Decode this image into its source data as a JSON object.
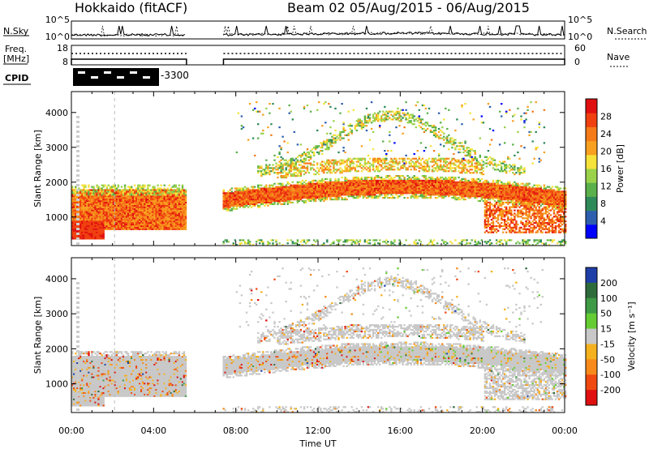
{
  "header": {
    "site": "Hokkaido (fitACF)",
    "beam": "Beam 02  05/Aug/2015 - 06/Aug/2015"
  },
  "noise_panel": {
    "left_label": "N.Sky",
    "right_label": "N.Search",
    "left_ticks": [
      "10^5",
      "10^0"
    ],
    "right_ticks": [
      "10^5",
      "10^0"
    ]
  },
  "freq_panel": {
    "left_label_lines": [
      "Freq.",
      "[MHz]"
    ],
    "right_label": "Nave",
    "left_ticks": [
      "18",
      "8"
    ],
    "right_ticks": [
      "60",
      "0"
    ]
  },
  "cpid": {
    "label": "CPID",
    "value": "-3300"
  },
  "chart_data": [
    {
      "type": "heatmap",
      "name": "power",
      "ylabel": "Slant Range [km]",
      "y_ticks": [
        1000,
        2000,
        3000,
        4000
      ],
      "ylim": [
        180,
        4600
      ],
      "colorbar": {
        "label": "Power [dB]",
        "tick_labels": [
          "4",
          "8",
          "12",
          "16",
          "20",
          "24",
          "28"
        ],
        "colors": [
          "#0000ff",
          "#2e5fae",
          "#2f8a5a",
          "#5ab04a",
          "#9ad24a",
          "#f5e23a",
          "#f8a020",
          "#f57a18",
          "#f04010",
          "#e01010"
        ]
      },
      "bands": [
        {
          "range_km": [
            1300,
            1700
          ],
          "time_h": [
            0.0,
            5.6
          ],
          "value": 22
        },
        {
          "range_km": [
            900,
            1400
          ],
          "time_h": [
            0.0,
            1.8
          ],
          "value": 26
        },
        {
          "range_km": [
            1300,
            1800
          ],
          "time_h": [
            7.4,
            24.0
          ],
          "value": 26
        },
        {
          "range_km": [
            2200,
            3000
          ],
          "time_h": [
            10.0,
            22.0
          ],
          "value": 18
        },
        {
          "range_km": [
            3000,
            4000
          ],
          "time_h": [
            11.0,
            19.0
          ],
          "value": 14
        }
      ]
    },
    {
      "type": "heatmap",
      "name": "velocity",
      "ylabel": "Slant Range [km]",
      "xlabel": "Time UT",
      "y_ticks": [
        1000,
        2000,
        3000,
        4000
      ],
      "ylim": [
        180,
        4600
      ],
      "x_ticks": [
        "00:00",
        "04:00",
        "08:00",
        "12:00",
        "16:00",
        "20:00",
        "00:00"
      ],
      "xlim": [
        0,
        24
      ],
      "colorbar": {
        "label": "Velocity [m s⁻¹]",
        "tick_labels": [
          "200",
          "100",
          "50",
          "15",
          "-15",
          "-50",
          "-100",
          "-200"
        ],
        "colors": [
          "#1f3fa8",
          "#2e6b3a",
          "#3e9a45",
          "#66cc33",
          "#c8c8c8",
          "#f5b21e",
          "#f78a1a",
          "#f04a10",
          "#e01010"
        ]
      }
    }
  ],
  "data_gap_hours": [
    5.6,
    7.4
  ]
}
